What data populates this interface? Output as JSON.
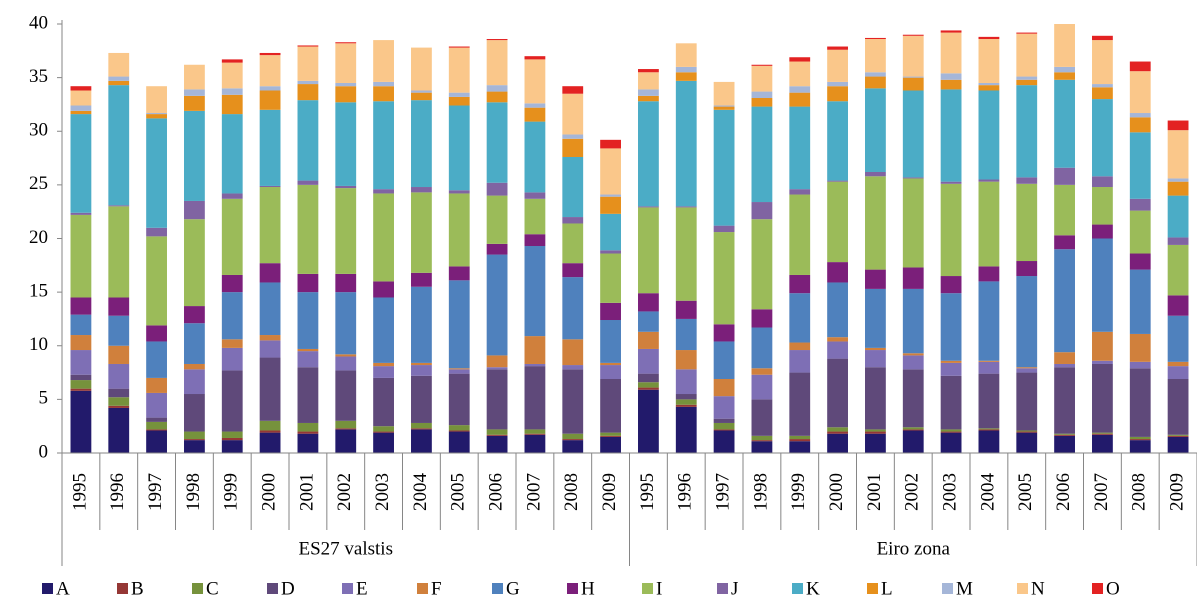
{
  "chart_data": {
    "type": "stacked-bar",
    "categories": [
      "1995",
      "1996",
      "1997",
      "1998",
      "1999",
      "2000",
      "2001",
      "2002",
      "2003",
      "2004",
      "2005",
      "2006",
      "2007",
      "2008",
      "2009",
      "1995",
      "1996",
      "1997",
      "1998",
      "1999",
      "2000",
      "2001",
      "2002",
      "2003",
      "2004",
      "2005",
      "2006",
      "2007",
      "2008",
      "2009"
    ],
    "category_groups": [
      "ES27 valstis",
      "Eiro zona"
    ],
    "ylim": [
      0,
      40
    ],
    "yticks": [
      0,
      5,
      10,
      15,
      20,
      25,
      30,
      35,
      40
    ],
    "grid": false,
    "legend": "bottom",
    "series": [
      {
        "name": "A",
        "color": "#221a6b",
        "values": [
          5.8,
          4.2,
          2.1,
          1.2,
          1.2,
          1.9,
          1.8,
          2.2,
          1.9,
          2.2,
          2.0,
          1.6,
          1.7,
          1.2,
          1.5,
          5.9,
          4.3,
          2.1,
          1.1,
          1.1,
          1.8,
          1.8,
          2.1,
          1.9,
          2.1,
          1.9,
          1.6,
          1.7,
          1.2,
          1.5
        ]
      },
      {
        "name": "B",
        "color": "#953735",
        "values": [
          0.2,
          0.2,
          0.1,
          0.1,
          0.2,
          0.2,
          0.2,
          0.1,
          0.1,
          0.1,
          0.1,
          0.1,
          0.1,
          0.1,
          0.1,
          0.2,
          0.2,
          0.1,
          0.1,
          0.2,
          0.2,
          0.2,
          0.1,
          0.1,
          0.1,
          0.1,
          0.1,
          0.1,
          0.1,
          0.1
        ]
      },
      {
        "name": "C",
        "color": "#76923c",
        "values": [
          0.8,
          0.8,
          0.7,
          0.7,
          0.6,
          0.9,
          0.8,
          0.7,
          0.5,
          0.5,
          0.5,
          0.5,
          0.4,
          0.5,
          0.3,
          0.5,
          0.5,
          0.6,
          0.4,
          0.3,
          0.4,
          0.2,
          0.2,
          0.2,
          0.1,
          0.1,
          0.1,
          0.1,
          0.2,
          0.1
        ]
      },
      {
        "name": "D",
        "color": "#5f497a",
        "values": [
          0.5,
          0.8,
          0.4,
          3.5,
          5.7,
          5.9,
          5.2,
          4.7,
          4.5,
          4.4,
          4.8,
          5.6,
          5.9,
          6.0,
          5.0,
          0.8,
          0.5,
          0.4,
          3.4,
          5.9,
          6.4,
          5.8,
          5.4,
          5.0,
          5.1,
          5.4,
          6.2,
          6.4,
          6.4,
          5.2
        ]
      },
      {
        "name": "E",
        "color": "#7e6fb5",
        "values": [
          2.3,
          2.3,
          2.3,
          2.3,
          2.1,
          1.6,
          1.5,
          1.3,
          1.1,
          1.0,
          0.4,
          0.2,
          0.2,
          0.4,
          1.3,
          2.3,
          2.3,
          2.1,
          2.3,
          2.1,
          1.6,
          1.6,
          1.3,
          1.2,
          1.1,
          0.4,
          0.3,
          0.3,
          0.6,
          1.2
        ]
      },
      {
        "name": "F",
        "color": "#d0803c",
        "values": [
          1.4,
          1.7,
          1.4,
          0.5,
          0.8,
          0.5,
          0.2,
          0.2,
          0.3,
          0.2,
          0.1,
          1.1,
          2.6,
          2.4,
          0.2,
          1.6,
          1.8,
          1.6,
          0.6,
          0.7,
          0.4,
          0.2,
          0.2,
          0.2,
          0.1,
          0.1,
          1.1,
          2.7,
          2.6,
          0.4
        ]
      },
      {
        "name": "G",
        "color": "#4f81bd",
        "values": [
          1.9,
          2.8,
          3.4,
          3.8,
          4.4,
          4.9,
          5.3,
          5.8,
          6.1,
          7.1,
          8.2,
          9.4,
          8.4,
          5.8,
          4.0,
          1.9,
          2.9,
          3.5,
          3.8,
          4.6,
          5.1,
          5.5,
          6.0,
          6.3,
          7.4,
          8.5,
          9.6,
          8.7,
          6.0,
          4.3
        ]
      },
      {
        "name": "H",
        "color": "#7b1f7a",
        "values": [
          1.6,
          1.7,
          1.5,
          1.6,
          1.6,
          1.8,
          1.7,
          1.7,
          1.5,
          1.3,
          1.3,
          1.0,
          1.1,
          1.3,
          1.6,
          1.7,
          1.7,
          1.6,
          1.7,
          1.7,
          1.9,
          1.8,
          2.0,
          1.6,
          1.4,
          1.4,
          1.3,
          1.3,
          1.5,
          1.9
        ]
      },
      {
        "name": "I",
        "color": "#9bbb59",
        "values": [
          7.7,
          8.5,
          8.3,
          8.1,
          7.1,
          7.1,
          8.3,
          8.0,
          8.2,
          7.5,
          6.8,
          4.5,
          3.3,
          3.7,
          4.6,
          8.0,
          8.7,
          8.6,
          8.4,
          7.5,
          7.5,
          8.7,
          8.3,
          8.6,
          7.9,
          7.2,
          4.7,
          3.5,
          4.0,
          4.7
        ]
      },
      {
        "name": "J",
        "color": "#8064a2",
        "values": [
          0.2,
          0.1,
          0.8,
          1.7,
          0.5,
          0.1,
          0.4,
          0.2,
          0.4,
          0.5,
          0.3,
          1.2,
          0.6,
          0.6,
          0.3,
          0.1,
          0.1,
          0.6,
          1.6,
          0.5,
          0.1,
          0.4,
          0.1,
          0.2,
          0.2,
          0.6,
          1.6,
          1.0,
          1.1,
          0.7
        ]
      },
      {
        "name": "K",
        "color": "#4bacc6",
        "values": [
          9.2,
          11.2,
          10.2,
          8.4,
          7.4,
          7.1,
          7.5,
          7.8,
          8.2,
          8.1,
          7.9,
          7.5,
          6.6,
          5.6,
          3.4,
          9.8,
          11.7,
          10.8,
          8.9,
          7.7,
          7.4,
          7.8,
          8.1,
          8.6,
          8.3,
          8.6,
          8.2,
          7.2,
          6.2,
          3.9
        ]
      },
      {
        "name": "L",
        "color": "#e6901c",
        "values": [
          0.3,
          0.4,
          0.4,
          1.4,
          1.8,
          1.8,
          1.5,
          1.5,
          1.4,
          0.7,
          0.8,
          1.0,
          1.3,
          1.7,
          1.6,
          0.5,
          0.8,
          0.3,
          0.8,
          1.3,
          1.4,
          1.1,
          1.2,
          0.9,
          0.5,
          0.5,
          0.7,
          1.1,
          1.4,
          1.3
        ]
      },
      {
        "name": "M",
        "color": "#a5b6d8",
        "values": [
          0.5,
          0.4,
          0.1,
          0.6,
          0.6,
          0.4,
          0.3,
          0.3,
          0.4,
          0.2,
          0.4,
          0.6,
          0.4,
          0.4,
          0.2,
          0.6,
          0.5,
          0.1,
          0.6,
          0.6,
          0.4,
          0.4,
          0.1,
          0.6,
          0.2,
          0.3,
          0.5,
          0.3,
          0.4,
          0.3
        ]
      },
      {
        "name": "N",
        "color": "#fac78a",
        "values": [
          1.4,
          2.2,
          2.5,
          2.3,
          2.4,
          2.9,
          3.2,
          3.7,
          3.9,
          4.0,
          4.2,
          4.2,
          4.1,
          3.8,
          4.3,
          1.6,
          2.2,
          2.2,
          2.4,
          2.3,
          3.0,
          3.1,
          3.8,
          3.8,
          4.1,
          4.0,
          4.0,
          4.1,
          3.9,
          4.5
        ]
      },
      {
        "name": "O",
        "color": "#e32222",
        "values": [
          0.4,
          0,
          0,
          0,
          0.3,
          0.2,
          0.1,
          0.1,
          0,
          0,
          0.1,
          0.1,
          0.3,
          0.7,
          0.8,
          0.3,
          0,
          0,
          0.1,
          0.4,
          0.3,
          0.1,
          0.1,
          0.2,
          0.2,
          0.1,
          0,
          0.4,
          0.9,
          0.9
        ]
      }
    ]
  }
}
